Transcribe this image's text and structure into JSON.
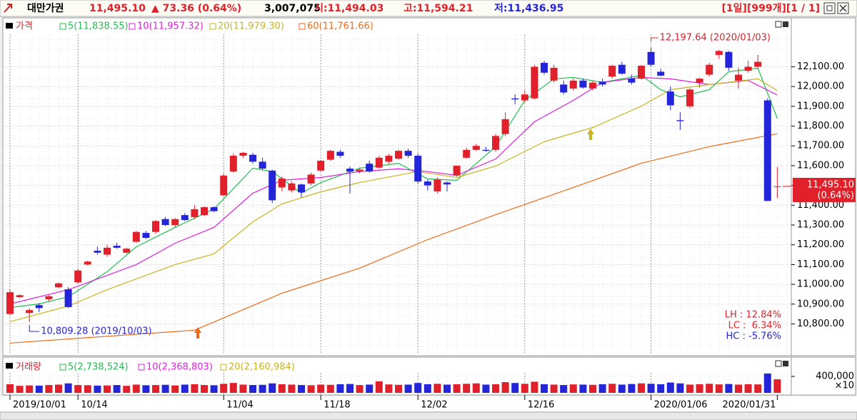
{
  "header": {
    "name": "대만가권",
    "price": "11,495.10",
    "change": "▲ 73.36 (0.64%)",
    "volume": "3,007,075",
    "open": "시:11,494.03",
    "high": "고:11,594.21",
    "low": "저:11,436.95",
    "range": "[1일][999개][1 / 1]"
  },
  "chart_data": {
    "type": "candlestick",
    "name": "가격",
    "up_color": "#e0202a",
    "down_color": "#2424d8",
    "grid": true,
    "categories": [
      "2019/10/01",
      null,
      null,
      null,
      null,
      null,
      null,
      "10/14",
      null,
      null,
      null,
      null,
      null,
      null,
      null,
      null,
      null,
      null,
      null,
      null,
      null,
      null,
      "11/04",
      null,
      null,
      null,
      null,
      null,
      null,
      null,
      null,
      null,
      "11/18",
      null,
      null,
      null,
      null,
      null,
      null,
      null,
      null,
      null,
      "12/02",
      null,
      null,
      null,
      null,
      null,
      null,
      null,
      null,
      null,
      null,
      "12/16",
      null,
      null,
      null,
      null,
      null,
      null,
      null,
      null,
      null,
      null,
      null,
      null,
      "2020/01/06",
      null,
      null,
      null,
      null,
      null,
      null,
      null,
      null,
      null,
      null,
      null,
      null,
      "2020/01/31"
    ],
    "ohlc": [
      [
        10850,
        10975,
        10845,
        10960
      ],
      [
        10935,
        10950,
        10930,
        10945
      ],
      [
        10855,
        10880,
        10809.28,
        10870
      ],
      [
        10895,
        10905,
        10860,
        10880
      ],
      [
        10925,
        10945,
        10915,
        10940
      ],
      [
        10985,
        11010,
        10980,
        11005
      ],
      [
        10975,
        10985,
        10880,
        10885
      ],
      [
        11010,
        11080,
        11005,
        11070
      ],
      [
        11100,
        11120,
        11095,
        11115
      ],
      [
        11170,
        11190,
        11150,
        11160
      ],
      [
        11150,
        11200,
        11140,
        11185
      ],
      [
        11195,
        11210,
        11180,
        11185
      ],
      [
        11160,
        11185,
        11155,
        11180
      ],
      [
        11215,
        11270,
        11210,
        11265
      ],
      [
        11260,
        11270,
        11230,
        11235
      ],
      [
        11265,
        11325,
        11255,
        11320
      ],
      [
        11330,
        11340,
        11295,
        11300
      ],
      [
        11300,
        11335,
        11290,
        11330
      ],
      [
        11350,
        11360,
        11320,
        11325
      ],
      [
        11340,
        11400,
        11330,
        11380
      ],
      [
        11350,
        11395,
        11345,
        11390
      ],
      [
        11390,
        11395,
        11365,
        11370
      ],
      [
        11450,
        11560,
        11445,
        11550
      ],
      [
        11570,
        11660,
        11565,
        11650
      ],
      [
        11650,
        11670,
        11640,
        11665
      ],
      [
        11655,
        11665,
        11610,
        11620
      ],
      [
        11620,
        11640,
        11580,
        11585
      ],
      [
        11575,
        11580,
        11410,
        11425
      ],
      [
        11490,
        11545,
        11470,
        11535
      ],
      [
        11475,
        11520,
        11465,
        11510
      ],
      [
        11505,
        11510,
        11440,
        11465
      ],
      [
        11510,
        11565,
        11500,
        11555
      ],
      [
        11575,
        11630,
        11570,
        11625
      ],
      [
        11630,
        11680,
        11625,
        11675
      ],
      [
        11670,
        11680,
        11640,
        11650
      ],
      [
        11585,
        11595,
        11460,
        11570
      ],
      [
        11570,
        11590,
        11560,
        11580
      ],
      [
        11610,
        11625,
        11565,
        11570
      ],
      [
        11590,
        11650,
        11585,
        11640
      ],
      [
        11620,
        11660,
        11610,
        11650
      ],
      [
        11635,
        11680,
        11630,
        11675
      ],
      [
        11675,
        11685,
        11640,
        11650
      ],
      [
        11650,
        11660,
        11510,
        11520
      ],
      [
        11520,
        11530,
        11475,
        11500
      ],
      [
        11470,
        11540,
        11460,
        11530
      ],
      [
        11515,
        11520,
        11470,
        11505
      ],
      [
        11550,
        11600,
        11545,
        11600
      ],
      [
        11640,
        11690,
        11635,
        11680
      ],
      [
        11680,
        11710,
        11675,
        11700
      ],
      [
        11680,
        11695,
        11670,
        11675
      ],
      [
        11680,
        11760,
        11670,
        11750
      ],
      [
        11760,
        11870,
        11750,
        11835
      ],
      [
        11940,
        11960,
        11910,
        11935
      ],
      [
        11930,
        11980,
        11920,
        11960
      ],
      [
        11940,
        12110,
        11935,
        12100
      ],
      [
        12120,
        12130,
        12060,
        12070
      ],
      [
        12030,
        12110,
        12020,
        12095
      ],
      [
        12010,
        12030,
        11960,
        11970
      ],
      [
        11990,
        12040,
        11980,
        12030
      ],
      [
        12030,
        12040,
        11990,
        11995
      ],
      [
        11990,
        12030,
        11980,
        12020
      ],
      [
        12025,
        12040,
        12000,
        12010
      ],
      [
        12050,
        12110,
        12040,
        12105
      ],
      [
        12110,
        12125,
        12060,
        12065
      ],
      [
        12040,
        12060,
        12010,
        12020
      ],
      [
        12040,
        12110,
        12035,
        12105
      ],
      [
        12175,
        12197.64,
        12100,
        12110
      ],
      [
        12075,
        12090,
        12050,
        12055
      ],
      [
        11975,
        12000,
        11880,
        11905
      ],
      [
        11830,
        11870,
        11780,
        11825
      ],
      [
        11900,
        11990,
        11890,
        11985
      ],
      [
        12020,
        12045,
        11995,
        12040
      ],
      [
        12060,
        12120,
        12050,
        12110
      ],
      [
        12160,
        12185,
        12140,
        12180
      ],
      [
        12175,
        12180,
        12080,
        12095
      ],
      [
        12030,
        12095,
        11990,
        12060
      ],
      [
        12080,
        12130,
        12070,
        12100
      ],
      [
        12100,
        12160,
        12090,
        12125
      ],
      [
        11930,
        11940,
        11421.74,
        11421.74
      ],
      [
        11494.03,
        11594.21,
        11436.95,
        11495.1
      ]
    ],
    "ylim": [
      10650,
      12340
    ],
    "yticks": [
      {
        "value": 10800,
        "label": "10,800.00"
      },
      {
        "value": 10900,
        "label": "10,900.00"
      },
      {
        "value": 11000,
        "label": "11,000.00"
      },
      {
        "value": 11100,
        "label": "11,100.00"
      },
      {
        "value": 11200,
        "label": "11,200.00"
      },
      {
        "value": 11300,
        "label": "11,300.00"
      },
      {
        "value": 11400,
        "label": "11,400.00"
      },
      {
        "value": 11500,
        "label": "11,500.00"
      },
      {
        "value": 11600,
        "label": "11,600.00"
      },
      {
        "value": 11700,
        "label": "11,700.00"
      },
      {
        "value": 11800,
        "label": "11,800.00"
      },
      {
        "value": 11900,
        "label": "11,900.00"
      },
      {
        "value": 12000,
        "label": "12,000.00"
      },
      {
        "value": 12100,
        "label": "12,100.00"
      }
    ],
    "ma": [
      {
        "name": "5(11,838.55)",
        "color": "#1fbf4f",
        "x": [
          0,
          3,
          6,
          10,
          13,
          17,
          21,
          25,
          27,
          30,
          32,
          36,
          40,
          43,
          46,
          50,
          53,
          56,
          58,
          61,
          65,
          67,
          69,
          72,
          74,
          77,
          79
        ],
        "values": [
          10883,
          10901,
          10937,
          11064,
          11190,
          11288,
          11381,
          11587,
          11570,
          11461,
          11515,
          11587,
          11612,
          11533,
          11526,
          11696,
          11930,
          12039,
          12046,
          12021,
          12057,
          11984,
          11948,
          11984,
          12075,
          12093,
          11838.55
        ]
      },
      {
        "name": "10(11,957.32)",
        "color": "#e020e0",
        "x": [
          0,
          6,
          13,
          17,
          21,
          25,
          28,
          32,
          36,
          40,
          43,
          46,
          50,
          54,
          58,
          61,
          65,
          68,
          72,
          76,
          79
        ],
        "values": [
          10901,
          10973,
          11100,
          11208,
          11288,
          11461,
          11526,
          11540,
          11570,
          11584,
          11570,
          11551,
          11634,
          11822,
          11930,
          12021,
          12046,
          12039,
          12010,
          12031,
          11957.32
        ]
      },
      {
        "name": "20(11,979.30)",
        "color": "#c8b41e",
        "x": [
          0,
          6,
          10,
          17,
          21,
          25,
          28,
          32,
          36,
          42,
          46,
          50,
          55,
          60,
          65,
          68,
          72,
          77,
          79
        ],
        "values": [
          10811,
          10890,
          10973,
          11100,
          11154,
          11316,
          11407,
          11468,
          11515,
          11570,
          11540,
          11598,
          11721,
          11793,
          11901,
          11984,
          12010,
          12039,
          11979.3
        ]
      },
      {
        "name": "60(11,761.66)",
        "color": "#f06a18",
        "x": [
          0,
          19,
          28,
          36,
          43,
          50,
          58,
          65,
          72,
          79
        ],
        "values": [
          10703,
          10768,
          10955,
          11082,
          11226,
          11352,
          11490,
          11612,
          11696,
          11761.66
        ]
      }
    ],
    "last_label": {
      "price": "11,495.10",
      "change": "(0.64%)"
    },
    "annotations": {
      "high_text": "12,197.64 (2020/01/03)",
      "low_text": "10,809.28 (2019/10/03)"
    },
    "stats": [
      "LH : 12.84%",
      "LC :  6.34%",
      "HC : -5.76%"
    ],
    "volume": {
      "name": "거래량",
      "unit": "×10",
      "ylim": [
        0,
        780000
      ],
      "yticks": [
        {
          "value": 400000,
          "label": "400,000"
        }
      ],
      "ma_names": [
        "5(2,738,524)",
        "10(2,368,803)",
        "20(2,160,984)"
      ],
      "ma_colors": [
        "#1fbf4f",
        "#e020e0",
        "#c8b41e"
      ],
      "values": [
        210000,
        170000,
        180000,
        175000,
        190000,
        200000,
        230000,
        190000,
        185000,
        175000,
        180000,
        190000,
        170000,
        200000,
        185000,
        190000,
        195000,
        180000,
        200000,
        210000,
        190000,
        185000,
        220000,
        240000,
        200000,
        190000,
        195000,
        230000,
        210000,
        200000,
        190000,
        185000,
        200000,
        195000,
        210000,
        215000,
        190000,
        200000,
        280000,
        205000,
        195000,
        200000,
        240000,
        210000,
        220000,
        200000,
        210000,
        220000,
        230000,
        200000,
        210000,
        260000,
        240000,
        220000,
        270000,
        210000,
        200000,
        190000,
        205000,
        200000,
        195000,
        210000,
        220000,
        200000,
        215000,
        230000,
        220000,
        210000,
        250000,
        230000,
        200000,
        210000,
        220000,
        205000,
        215000,
        200000,
        210000,
        205000,
        470000,
        330000
      ]
    }
  }
}
